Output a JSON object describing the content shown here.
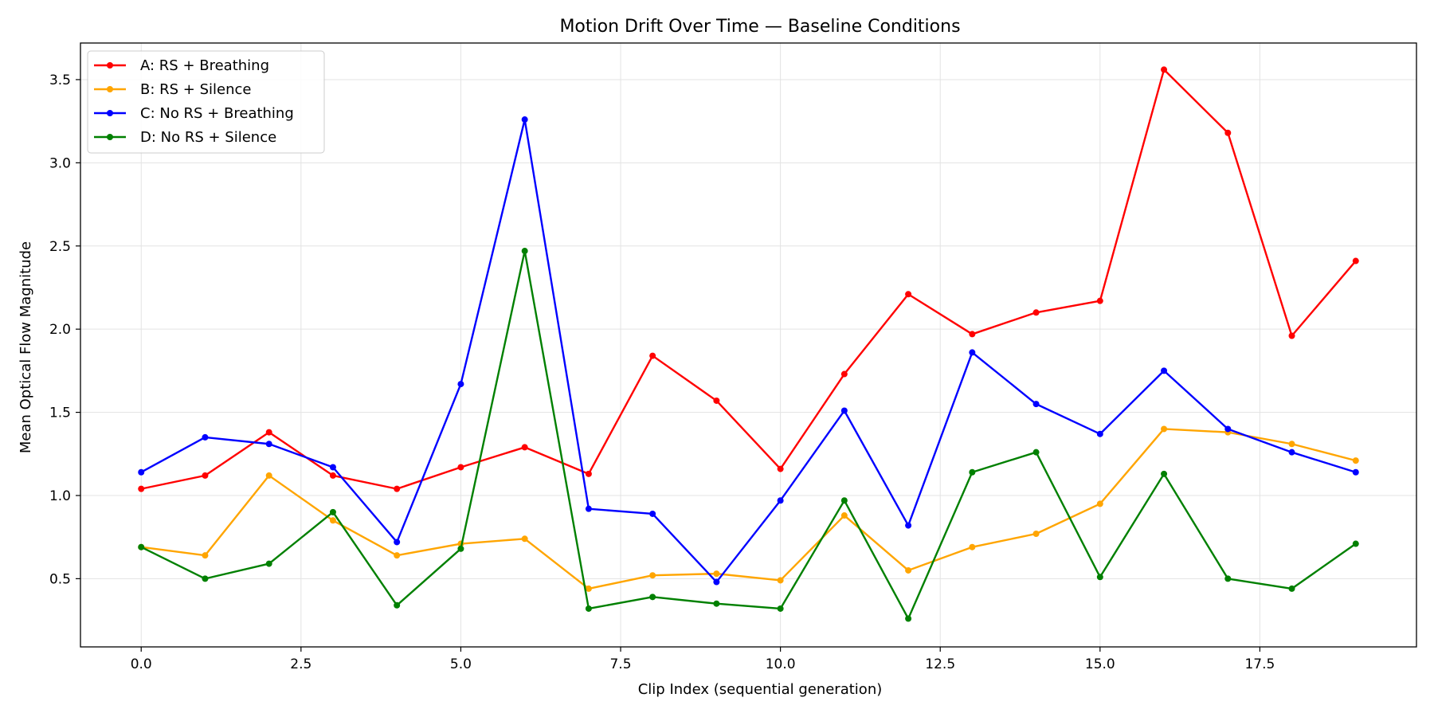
{
  "chart_data": {
    "type": "line",
    "title": "Motion Drift Over Time — Baseline Conditions",
    "xlabel": "Clip Index (sequential generation)",
    "ylabel": "Mean Optical Flow Magnitude",
    "xlim": [
      -0.95,
      19.95
    ],
    "ylim": [
      0.09,
      3.72
    ],
    "xticks": [
      0.0,
      2.5,
      5.0,
      7.5,
      10.0,
      12.5,
      15.0,
      17.5
    ],
    "xtick_labels": [
      "0.0",
      "2.5",
      "5.0",
      "7.5",
      "10.0",
      "12.5",
      "15.0",
      "17.5"
    ],
    "yticks": [
      0.5,
      1.0,
      1.5,
      2.0,
      2.5,
      3.0,
      3.5
    ],
    "ytick_labels": [
      "0.5",
      "1.0",
      "1.5",
      "2.0",
      "2.5",
      "3.0",
      "3.5"
    ],
    "grid": true,
    "legend_position": "top-left",
    "x": [
      0,
      1,
      2,
      3,
      4,
      5,
      6,
      7,
      8,
      9,
      10,
      11,
      12,
      13,
      14,
      15,
      16,
      17,
      18,
      19
    ],
    "series": [
      {
        "name": "A: RS + Breathing",
        "color": "#ff0000",
        "values": [
          1.04,
          1.12,
          1.38,
          1.12,
          1.04,
          1.17,
          1.29,
          1.13,
          1.84,
          1.57,
          1.16,
          1.73,
          2.21,
          1.97,
          2.1,
          2.17,
          3.56,
          3.18,
          1.96,
          2.41
        ]
      },
      {
        "name": "B: RS + Silence",
        "color": "#ffa500",
        "values": [
          0.69,
          0.64,
          1.12,
          0.85,
          0.64,
          0.71,
          0.74,
          0.44,
          0.52,
          0.53,
          0.49,
          0.88,
          0.55,
          0.69,
          0.77,
          0.95,
          1.4,
          1.38,
          1.31,
          1.21
        ]
      },
      {
        "name": "C: No RS + Breathing",
        "color": "#0000ff",
        "values": [
          1.14,
          1.35,
          1.31,
          1.17,
          0.72,
          1.67,
          3.26,
          0.92,
          0.89,
          0.48,
          0.97,
          1.51,
          0.82,
          1.86,
          1.55,
          1.37,
          1.75,
          1.4,
          1.26,
          1.14
        ]
      },
      {
        "name": "D: No RS + Silence",
        "color": "#008000",
        "values": [
          0.69,
          0.5,
          0.59,
          0.9,
          0.34,
          0.68,
          2.47,
          0.32,
          0.39,
          0.35,
          0.32,
          0.97,
          0.26,
          1.14,
          1.26,
          0.51,
          1.13,
          0.5,
          0.44,
          0.71
        ]
      }
    ]
  }
}
